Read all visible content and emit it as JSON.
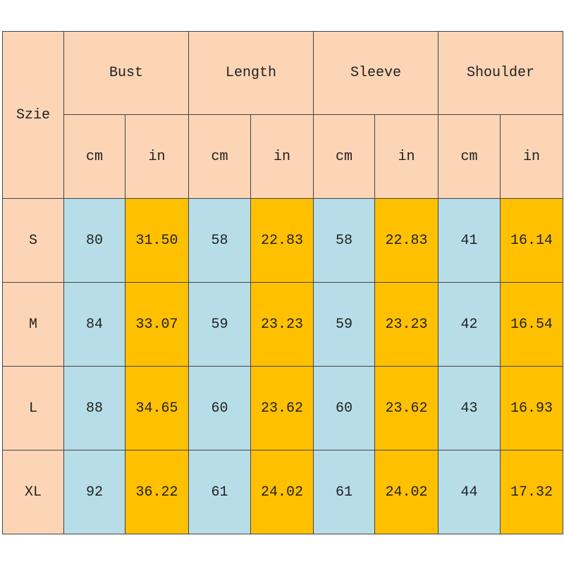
{
  "header": {
    "size_label": "Szie",
    "groups": [
      "Bust",
      "Length",
      "Sleeve",
      "Shoulder"
    ],
    "units": [
      "cm",
      "in",
      "cm",
      "in",
      "cm",
      "in",
      "cm",
      "in"
    ]
  },
  "table": {
    "rows": [
      [
        "S",
        "80",
        "31.50",
        "58",
        "22.83",
        "58",
        "22.83",
        "41",
        "16.14"
      ],
      [
        "M",
        "84",
        "33.07",
        "59",
        "23.23",
        "59",
        "23.23",
        "42",
        "16.54"
      ],
      [
        "L",
        "88",
        "34.65",
        "60",
        "23.62",
        "60",
        "23.62",
        "43",
        "16.93"
      ],
      [
        "XL",
        "92",
        "36.22",
        "61",
        "24.02",
        "61",
        "24.02",
        "44",
        "17.32"
      ]
    ]
  }
}
